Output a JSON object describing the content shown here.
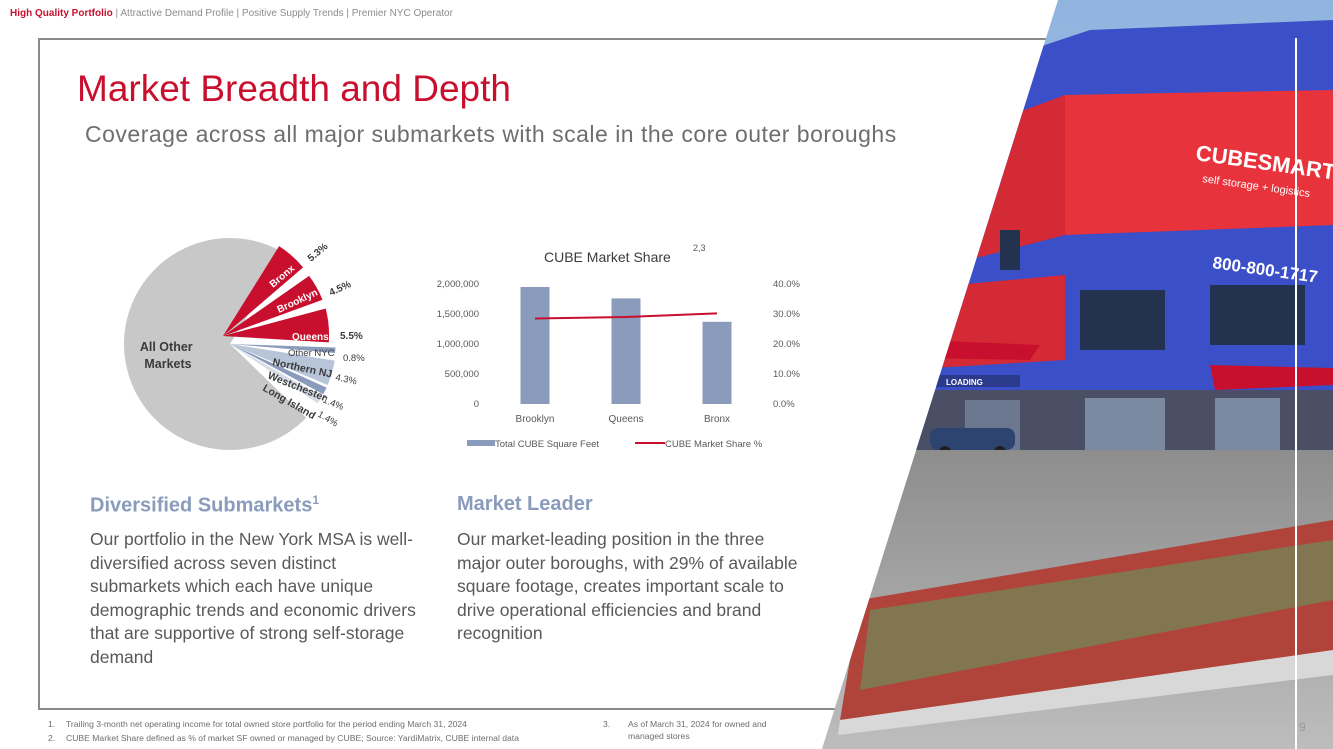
{
  "nav": {
    "active": "High Quality Portfolio",
    "rest": " | Attractive Demand Profile | Positive Supply Trends | Premier NYC Operator"
  },
  "title": "Market Breadth and Depth",
  "subtitle": "Coverage across all major submarkets with scale in the core outer boroughs",
  "pie": {
    "center_label_1": "All Other",
    "center_label_2": "Markets",
    "slices": [
      {
        "label": "Bronx",
        "value": "5.3%",
        "pct": 5.3,
        "color": "#c8102e"
      },
      {
        "label": "Brooklyn",
        "value": "4.5%",
        "pct": 4.5,
        "color": "#c8102e"
      },
      {
        "label": "Queens",
        "value": "5.5%",
        "pct": 5.5,
        "color": "#c8102e"
      },
      {
        "label": "Other NYC",
        "value": "0.8%",
        "pct": 0.8,
        "color": "#8a9bbc"
      },
      {
        "label": "Northern NJ",
        "value": "4.3%",
        "pct": 4.3,
        "color": "#b8c4d8"
      },
      {
        "label": "Westchester",
        "value": "1.4%",
        "pct": 1.4,
        "color": "#8a9bbc"
      },
      {
        "label": "Long Island",
        "value": "1.4%",
        "pct": 1.4,
        "color": "#d6dde8"
      }
    ],
    "other_color": "#c8c8c8"
  },
  "chart_data": {
    "type": "bar",
    "title": "CUBE Market Share",
    "title_superscript": "2,3",
    "categories": [
      "Brooklyn",
      "Queens",
      "Bronx"
    ],
    "series": [
      {
        "name": "Total CUBE Square Feet",
        "type": "bar",
        "axis": "left",
        "values": [
          1950000,
          1760000,
          1370000
        ],
        "color": "#8a9bbc"
      },
      {
        "name": "CUBE Market Share %",
        "type": "line",
        "axis": "right",
        "values": [
          28.5,
          29.0,
          30.2
        ],
        "color": "#c8102e"
      }
    ],
    "y_left": {
      "min": 0,
      "max": 2000000,
      "ticks": [
        "0",
        "500,000",
        "1,000,000",
        "1,500,000",
        "2,000,000"
      ]
    },
    "y_right": {
      "min": 0,
      "max": 40,
      "ticks": [
        "0.0%",
        "10.0%",
        "20.0%",
        "30.0%",
        "40.0%"
      ]
    },
    "legend": "bottom"
  },
  "left_section": {
    "heading": "Diversified Submarkets",
    "heading_sup": "1",
    "body": "Our portfolio in the New York MSA is well-diversified across seven distinct submarkets which each have unique demographic trends and economic drivers that are supportive of strong self-storage demand"
  },
  "right_section": {
    "heading": "Market Leader",
    "body": "Our market-leading position in the three major outer boroughs, with 29% of available square footage, creates important scale to drive operational efficiencies and brand recognition"
  },
  "footnotes": {
    "f1_num": "1.",
    "f1": "Trailing 3-month net operating income for total owned store portfolio for the period ending March 31, 2024",
    "f2_num": "2.",
    "f2": "CUBE Market Share defined as % of market SF owned or managed by CUBE; Source: YardiMatrix, CUBE internal data",
    "f3_num": "3.",
    "f3": "As of March 31, 2024 for owned and managed stores"
  },
  "photo": {
    "sign_brand": "CUBESMART",
    "sign_tagline": "self storage + logistics",
    "phone": "800-800-1717",
    "door_label": "LOADING"
  },
  "page_number": "9"
}
